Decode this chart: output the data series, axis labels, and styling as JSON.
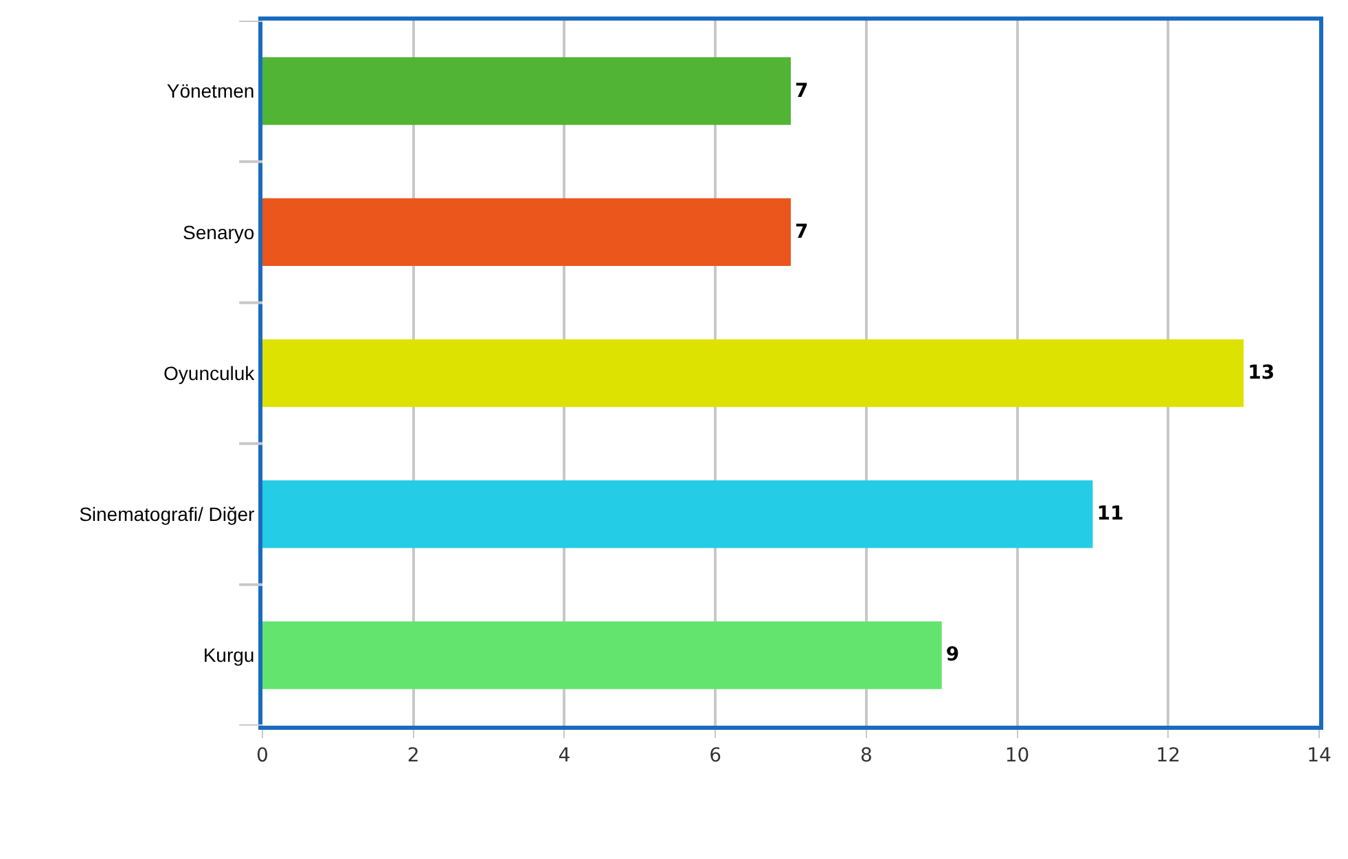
{
  "chart_data": {
    "type": "bar",
    "orientation": "horizontal",
    "categories": [
      "Yönetmen",
      "Senaryo",
      "Oyunculuk",
      "Sinematografi/ Diğer",
      "Kurgu"
    ],
    "values": [
      7,
      7,
      13,
      11,
      9
    ],
    "colors": [
      "#52b435",
      "#ea561c",
      "#dde200",
      "#25cce5",
      "#63e46f"
    ],
    "xlim": [
      0,
      14
    ],
    "xticks": [
      0,
      2,
      4,
      6,
      8,
      10,
      12,
      14
    ],
    "grid": "x",
    "data_labels": true
  }
}
